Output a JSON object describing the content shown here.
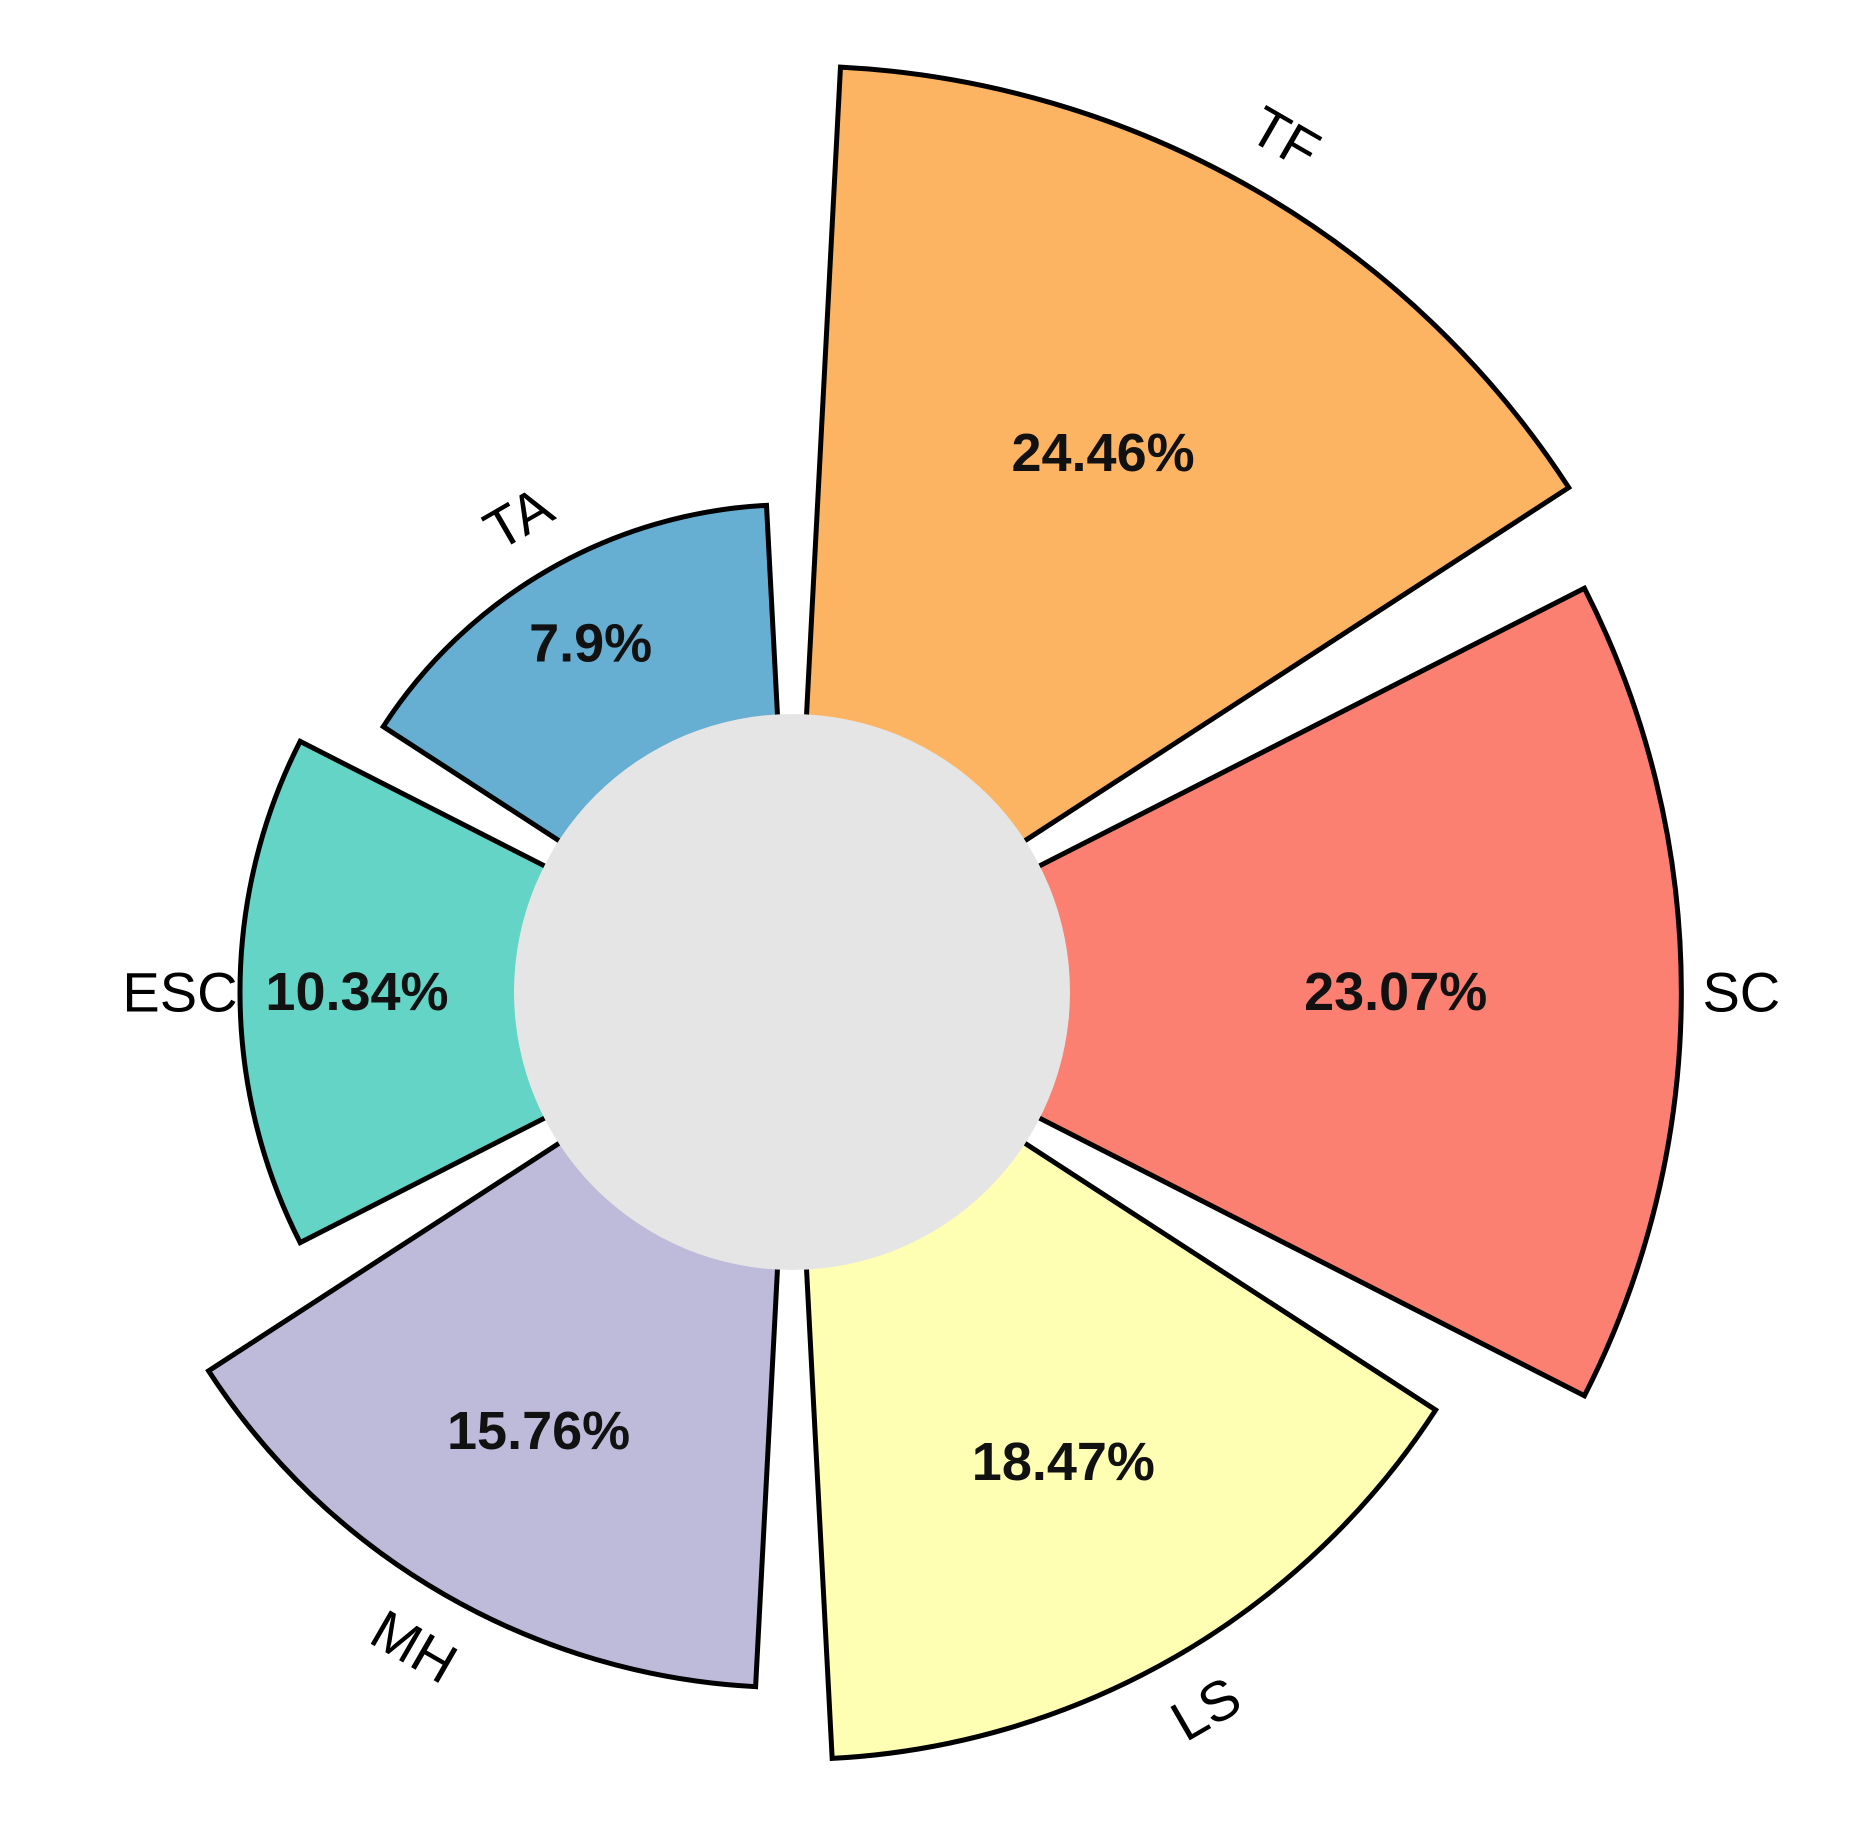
{
  "chart_data": {
    "type": "bar",
    "polar": true,
    "categories": [
      "SC",
      "TF",
      "TA",
      "ESC",
      "MH",
      "LS"
    ],
    "values": [
      23.07,
      24.46,
      7.9,
      10.34,
      15.76,
      18.47
    ],
    "value_labels": [
      "23.07%",
      "24.46%",
      "7.9%",
      "10.34%",
      "15.76%",
      "18.47%"
    ],
    "colors": [
      "#FB8072",
      "#FDB462",
      "#67AFD2",
      "#64D4C7",
      "#BEBADA",
      "#FFFFB3"
    ],
    "center_hole_color": "#E5E5E5",
    "outline_color": "#000000",
    "title": "",
    "grid": false,
    "legend": "none"
  }
}
